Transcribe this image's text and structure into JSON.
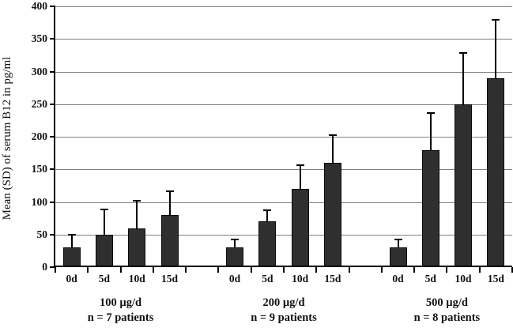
{
  "chart_data": {
    "type": "bar",
    "title": "",
    "xlabel": "",
    "ylabel": "Mean (SD) of serum B12 in pg/ml",
    "ylim": [
      0,
      400
    ],
    "ytick_step": 50,
    "ytick_labels": [
      "0",
      "50",
      "100",
      "150",
      "200",
      "250",
      "300",
      "350",
      "400"
    ],
    "grid": true,
    "legend": "none",
    "categories": [
      "0d",
      "5d",
      "10d",
      "15d"
    ],
    "groups": [
      {
        "label": "100 µg/d",
        "sublabel": "n = 7 patients",
        "means": [
          30,
          50,
          60,
          80
        ],
        "sd": [
          20,
          38,
          42,
          36
        ]
      },
      {
        "label": "200 µg/d",
        "sublabel": "n = 9 patients",
        "means": [
          30,
          70,
          120,
          160
        ],
        "sd": [
          13,
          17,
          36,
          42
        ]
      },
      {
        "label": "500 µg/d",
        "sublabel": "n = 8 patients",
        "means": [
          30,
          180,
          250,
          290
        ],
        "sd": [
          13,
          56,
          78,
          90
        ]
      }
    ],
    "colors": {
      "bar_fill": "#2f2f2f",
      "bar_border": "#0a0a0a",
      "gridline": "#7f7f7f",
      "axis": "#000000",
      "text": "#111111",
      "background": "#ffffff"
    }
  }
}
